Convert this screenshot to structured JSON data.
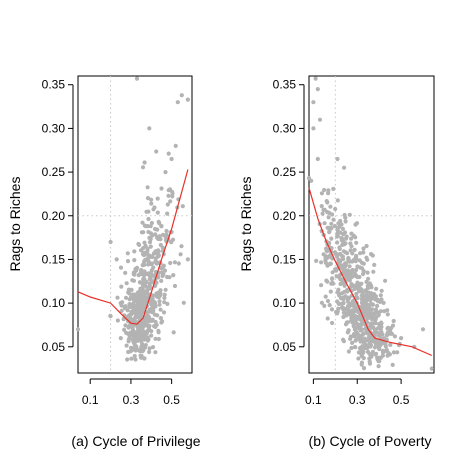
{
  "figure": {
    "panels": [
      {
        "caption": "(a) Cycle of Privilege",
        "ylabel": "Rags to Riches"
      },
      {
        "caption": "(b) Cycle of Poverty",
        "ylabel": "Rags to Riches"
      }
    ]
  },
  "chart_data": [
    {
      "type": "scatter",
      "title": "(a) Cycle of Privilege",
      "xlabel": "",
      "ylabel": "Rags to Riches",
      "xlim": [
        0.04,
        0.6
      ],
      "ylim": [
        0.02,
        0.36
      ],
      "x_ticks": [
        0.1,
        0.3,
        0.5
      ],
      "x_tick_labels": [
        "0.1",
        "0.3",
        "0.5"
      ],
      "y_ticks": [
        0.05,
        0.1,
        0.15,
        0.2,
        0.25,
        0.3,
        0.35
      ],
      "y_tick_labels": [
        "0.05",
        "0.10",
        "0.15",
        "0.20",
        "0.25",
        "0.30",
        "0.35"
      ],
      "reference_lines": {
        "x": 0.2,
        "y": 0.2,
        "style": "dotted"
      },
      "point_color": "#b3b3b3",
      "fit_color": "#e8302a",
      "fit_curve": {
        "x": [
          0.04,
          0.1,
          0.2,
          0.25,
          0.3,
          0.33,
          0.36,
          0.4,
          0.45,
          0.5,
          0.58
        ],
        "y": [
          0.113,
          0.107,
          0.1,
          0.088,
          0.077,
          0.076,
          0.083,
          0.112,
          0.15,
          0.185,
          0.253
        ]
      },
      "clusters": [
        {
          "cx": 0.34,
          "cy": 0.075,
          "sx": 0.035,
          "sy": 0.022,
          "n": 200
        },
        {
          "cx": 0.36,
          "cy": 0.105,
          "sx": 0.05,
          "sy": 0.03,
          "n": 200
        },
        {
          "cx": 0.42,
          "cy": 0.14,
          "sx": 0.05,
          "sy": 0.035,
          "n": 120
        },
        {
          "cx": 0.45,
          "cy": 0.19,
          "sx": 0.05,
          "sy": 0.04,
          "n": 50
        }
      ],
      "extra_points": [
        {
          "x": 0.04,
          "y": 0.07
        },
        {
          "x": 0.2,
          "y": 0.17
        },
        {
          "x": 0.23,
          "y": 0.15
        },
        {
          "x": 0.33,
          "y": 0.357
        },
        {
          "x": 0.39,
          "y": 0.3
        },
        {
          "x": 0.53,
          "y": 0.33
        },
        {
          "x": 0.55,
          "y": 0.338
        },
        {
          "x": 0.58,
          "y": 0.333
        },
        {
          "x": 0.52,
          "y": 0.28
        },
        {
          "x": 0.5,
          "y": 0.265
        },
        {
          "x": 0.47,
          "y": 0.25
        },
        {
          "x": 0.58,
          "y": 0.15
        },
        {
          "x": 0.2,
          "y": 0.085
        },
        {
          "x": 0.25,
          "y": 0.06
        }
      ]
    },
    {
      "type": "scatter",
      "title": "(b) Cycle of Poverty",
      "xlabel": "",
      "ylabel": "Rags to Riches",
      "xlim": [
        0.08,
        0.65
      ],
      "ylim": [
        0.02,
        0.36
      ],
      "x_ticks": [
        0.1,
        0.3,
        0.5
      ],
      "x_tick_labels": [
        "0.1",
        "0.3",
        "0.5"
      ],
      "y_ticks": [
        0.05,
        0.1,
        0.15,
        0.2,
        0.25,
        0.3,
        0.35
      ],
      "y_tick_labels": [
        "0.05",
        "0.10",
        "0.15",
        "0.20",
        "0.25",
        "0.30",
        "0.35"
      ],
      "reference_lines": {
        "x": 0.2,
        "y": 0.2,
        "style": "dotted"
      },
      "point_color": "#b3b3b3",
      "fit_color": "#e8302a",
      "fit_curve": {
        "x": [
          0.08,
          0.12,
          0.16,
          0.2,
          0.25,
          0.3,
          0.35,
          0.38,
          0.45,
          0.55,
          0.64
        ],
        "y": [
          0.232,
          0.197,
          0.17,
          0.148,
          0.123,
          0.1,
          0.07,
          0.06,
          0.055,
          0.05,
          0.04
        ]
      },
      "clusters": [
        {
          "cx": 0.33,
          "cy": 0.085,
          "sx": 0.04,
          "sy": 0.025,
          "n": 300
        },
        {
          "cx": 0.25,
          "cy": 0.13,
          "sx": 0.045,
          "sy": 0.03,
          "n": 200
        },
        {
          "cx": 0.18,
          "cy": 0.17,
          "sx": 0.035,
          "sy": 0.03,
          "n": 80
        },
        {
          "cx": 0.4,
          "cy": 0.055,
          "sx": 0.04,
          "sy": 0.015,
          "n": 100
        }
      ],
      "extra_points": [
        {
          "x": 0.11,
          "y": 0.357
        },
        {
          "x": 0.1,
          "y": 0.33
        },
        {
          "x": 0.12,
          "y": 0.345
        },
        {
          "x": 0.1,
          "y": 0.3
        },
        {
          "x": 0.13,
          "y": 0.31
        },
        {
          "x": 0.12,
          "y": 0.265
        },
        {
          "x": 0.09,
          "y": 0.24
        },
        {
          "x": 0.21,
          "y": 0.265
        },
        {
          "x": 0.24,
          "y": 0.255
        },
        {
          "x": 0.08,
          "y": 0.243
        },
        {
          "x": 0.6,
          "y": 0.07
        },
        {
          "x": 0.64,
          "y": 0.025
        },
        {
          "x": 0.56,
          "y": 0.05
        },
        {
          "x": 0.5,
          "y": 0.06
        }
      ]
    }
  ]
}
